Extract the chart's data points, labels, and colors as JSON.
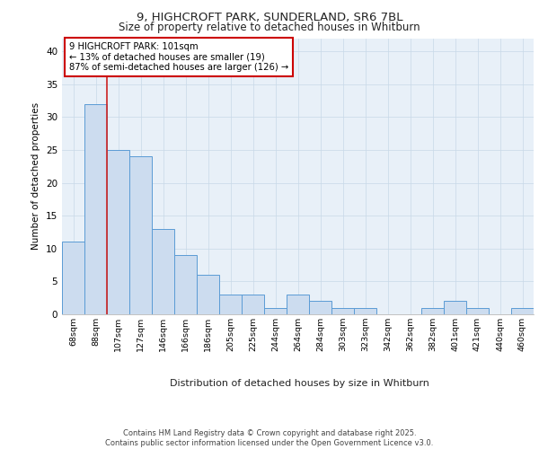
{
  "title_line1": "9, HIGHCROFT PARK, SUNDERLAND, SR6 7BL",
  "title_line2": "Size of property relative to detached houses in Whitburn",
  "xlabel": "Distribution of detached houses by size in Whitburn",
  "ylabel": "Number of detached properties",
  "bar_labels": [
    "68sqm",
    "88sqm",
    "107sqm",
    "127sqm",
    "146sqm",
    "166sqm",
    "186sqm",
    "205sqm",
    "225sqm",
    "244sqm",
    "264sqm",
    "284sqm",
    "303sqm",
    "323sqm",
    "342sqm",
    "362sqm",
    "382sqm",
    "401sqm",
    "421sqm",
    "440sqm",
    "460sqm"
  ],
  "bar_values": [
    11,
    32,
    25,
    24,
    13,
    9,
    6,
    3,
    3,
    1,
    3,
    2,
    1,
    1,
    0,
    0,
    1,
    2,
    1,
    0,
    1
  ],
  "bar_color": "#ccdcef",
  "bar_edge_color": "#5b9bd5",
  "grid_color": "#c8d8e8",
  "bg_color": "#e8f0f8",
  "red_line_x": 1.5,
  "annotation_text": "9 HIGHCROFT PARK: 101sqm\n← 13% of detached houses are smaller (19)\n87% of semi-detached houses are larger (126) →",
  "annotation_box_color": "#ffffff",
  "annotation_box_edge": "#cc0000",
  "footer_text": "Contains HM Land Registry data © Crown copyright and database right 2025.\nContains public sector information licensed under the Open Government Licence v3.0.",
  "ylim": [
    0,
    42
  ],
  "yticks": [
    0,
    5,
    10,
    15,
    20,
    25,
    30,
    35,
    40
  ]
}
